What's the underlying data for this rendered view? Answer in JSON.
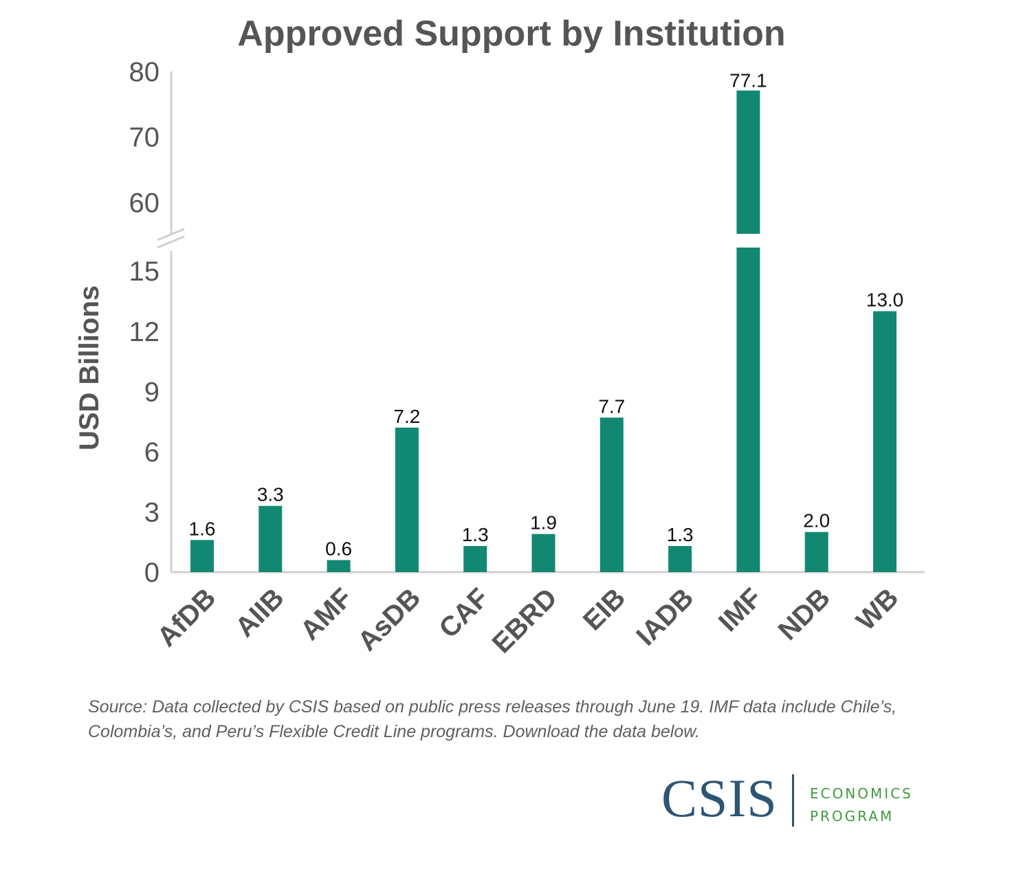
{
  "chart_data": {
    "type": "bar",
    "title": "Approved Support by Institution",
    "ylabel": "USD Billions",
    "xlabel": "",
    "categories": [
      "AfDB",
      "AIIB",
      "AMF",
      "AsDB",
      "CAF",
      "EBRD",
      "EIB",
      "IADB",
      "IMF",
      "NDB",
      "WB"
    ],
    "values": [
      1.6,
      3.3,
      0.6,
      7.2,
      1.3,
      1.9,
      7.7,
      1.3,
      77.1,
      2.0,
      13.0
    ],
    "value_labels": [
      "1.6",
      "3.3",
      "0.6",
      "7.2",
      "1.3",
      "1.9",
      "7.7",
      "1.3",
      "77.1",
      "2.0",
      "13.0"
    ],
    "broken_axis": true,
    "lower_segment": {
      "ylim": [
        0,
        16
      ],
      "ticks": [
        "0",
        "3",
        "6",
        "9",
        "12",
        "15"
      ]
    },
    "upper_segment": {
      "ylim": [
        55,
        80
      ],
      "ticks": [
        "60",
        "70",
        "80"
      ]
    },
    "bar_color": "#128872",
    "legend": "none",
    "grid": false
  },
  "source_note": "Source: Data collected by CSIS based on public press releases through June 19. IMF data include Chile’s, Colombia’s, and Peru’s Flexible Credit Line programs. Download the data below.",
  "logo": {
    "name": "CSIS",
    "program_line1": "ECONOMICS",
    "program_line2": "PROGRAM"
  },
  "colors": {
    "bar": "#128872",
    "axis": "#d0d0d0",
    "axis_text": "#555555",
    "logo_blue": "#2f5574",
    "logo_green": "#3f9a3f"
  }
}
